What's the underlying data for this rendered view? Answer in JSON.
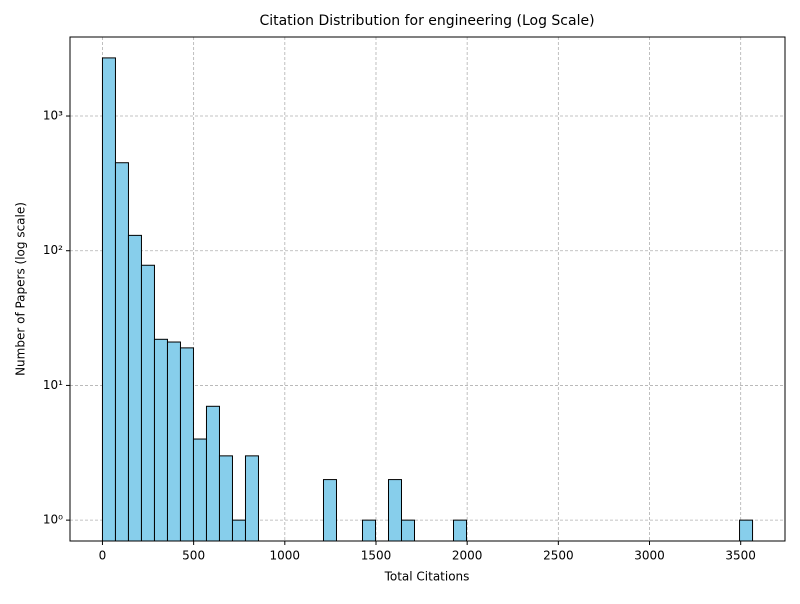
{
  "chart_data": {
    "type": "histogram",
    "title": "Citation Distribution for engineering (Log Scale)",
    "x_label": "Total Citations",
    "y_label": "Number of Papers (log scale)",
    "bins": [
      0,
      71.3,
      142.6,
      213.9,
      285.2,
      356.5,
      427.8,
      499.1,
      570.4,
      641.7,
      713,
      784.3,
      855.6,
      926.9,
      998.2,
      1069.5,
      1140.8,
      1212.1,
      1283.4,
      1354.7,
      1426,
      1497.3,
      1568.6,
      1639.9,
      1711.2,
      1782.5,
      1853.8,
      1925.1,
      1996.4,
      2067.7,
      2139,
      2210.3,
      2281.6,
      2352.9,
      2424.2,
      2495.5,
      2566.8,
      2638.1,
      2709.4,
      2780.7,
      2852,
      2923.3,
      2994.6,
      3065.9,
      3137.2,
      3208.5,
      3279.8,
      3351.1,
      3422.4,
      3493.7,
      3565
    ],
    "values": [
      2700,
      450,
      130,
      78,
      22,
      21,
      19,
      4,
      7,
      3,
      1,
      3,
      0,
      0,
      0,
      0,
      0,
      2,
      0,
      0,
      1,
      0,
      2,
      1,
      0,
      0,
      0,
      1,
      0,
      0,
      0,
      0,
      0,
      0,
      0,
      0,
      0,
      0,
      0,
      0,
      0,
      0,
      0,
      0,
      0,
      0,
      0,
      0,
      0,
      1
    ],
    "color": "#87ceeb",
    "edge_color": "#000000",
    "xlim": [
      -178,
      3743
    ],
    "xticks": [
      0,
      500,
      1000,
      1500,
      2000,
      2500,
      3000,
      3500
    ],
    "ylim": [
      0.7,
      3860
    ],
    "y_scale": "log",
    "yticks": [
      {
        "value": 1,
        "label": "10⁰"
      },
      {
        "value": 10,
        "label": "10¹"
      },
      {
        "value": 100,
        "label": "10²"
      },
      {
        "value": 1000,
        "label": "10³"
      }
    ],
    "grid": true
  }
}
